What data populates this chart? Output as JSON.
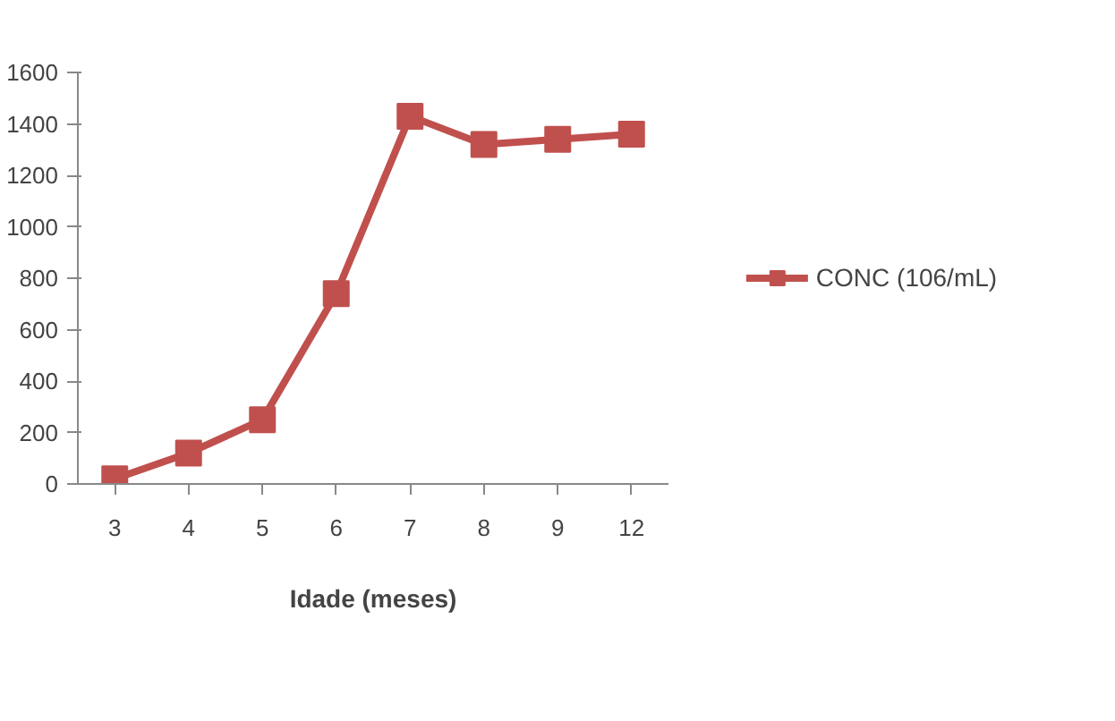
{
  "chart_data": {
    "type": "line",
    "xlabel": "Idade (meses)",
    "categories": [
      "3",
      "4",
      "5",
      "6",
      "7",
      "8",
      "9",
      "12"
    ],
    "series": [
      {
        "name": "CONC (106/mL)",
        "color": "#c0504d",
        "values": [
          20,
          120,
          250,
          740,
          1430,
          1320,
          1340,
          1360
        ]
      }
    ],
    "ylim": [
      0,
      1600
    ],
    "yticks": [
      0,
      200,
      400,
      600,
      800,
      1000,
      1200,
      1400,
      1600
    ],
    "grid": false,
    "legend": "right",
    "marker": "square",
    "line_style": "solid"
  }
}
